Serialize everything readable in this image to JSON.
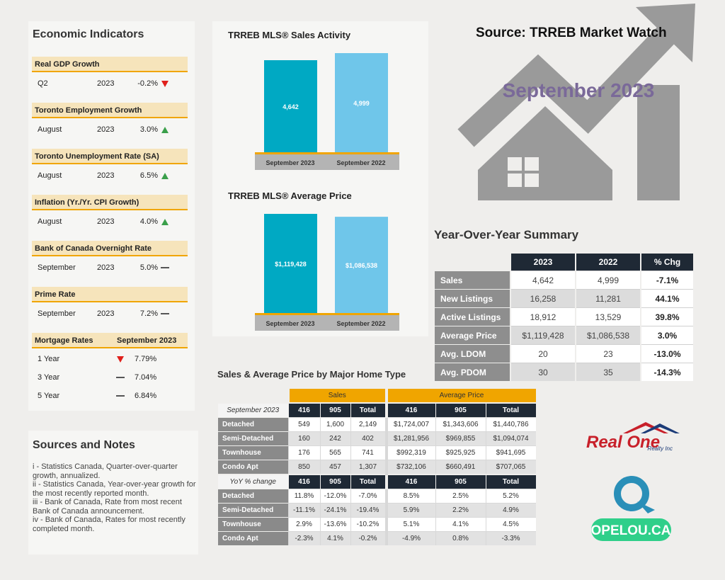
{
  "source": "Source: TRREB Market Watch",
  "period": "September 2023",
  "economic_indicators": {
    "title": "Economic Indicators",
    "items": [
      {
        "name": "Real GDP Growth",
        "period": "Q2",
        "year": "2023",
        "value": "-0.2%",
        "trend": "down"
      },
      {
        "name": "Toronto Employment Growth",
        "period": "August",
        "year": "2023",
        "value": "3.0%",
        "trend": "up"
      },
      {
        "name": "Toronto Unemployment Rate (SA)",
        "period": "August",
        "year": "2023",
        "value": "6.5%",
        "trend": "up"
      },
      {
        "name": "Inflation (Yr./Yr. CPI Growth)",
        "period": "August",
        "year": "2023",
        "value": "4.0%",
        "trend": "up"
      },
      {
        "name": "Bank of Canada Overnight Rate",
        "period": "September",
        "year": "2023",
        "value": "5.0%",
        "trend": "flat"
      },
      {
        "name": "Prime Rate",
        "period": "September",
        "year": "2023",
        "value": "7.2%",
        "trend": "flat"
      }
    ],
    "mortgage": {
      "title": "Mortgage Rates",
      "period": "September 2023",
      "rows": [
        {
          "term": "1 Year",
          "rate": "7.79%",
          "trend": "down"
        },
        {
          "term": "3 Year",
          "rate": "7.04%",
          "trend": "flat"
        },
        {
          "term": "5 Year",
          "rate": "6.84%",
          "trend": "flat"
        }
      ]
    }
  },
  "chart_data": [
    {
      "type": "bar",
      "title": "TRREB MLS® Sales Activity",
      "categories": [
        "September 2023",
        "September 2022"
      ],
      "values": [
        4642,
        4999
      ],
      "value_labels": [
        "4,642",
        "4,999"
      ],
      "colors": [
        "#00a9c3",
        "#6fc6ea"
      ]
    },
    {
      "type": "bar",
      "title": "TRREB MLS® Average Price",
      "categories": [
        "September 2023",
        "September 2022"
      ],
      "values": [
        1119428,
        1086538
      ],
      "value_labels": [
        "$1,119,428",
        "$1,086,538"
      ],
      "colors": [
        "#00a9c3",
        "#6fc6ea"
      ]
    }
  ],
  "yoy_summary": {
    "title": "Year-Over-Year Summary",
    "columns": [
      "2023",
      "2022",
      "% Chg"
    ],
    "rows": [
      {
        "label": "Sales",
        "cells": [
          "4,642",
          "4,999",
          "-7.1%"
        ]
      },
      {
        "label": "New Listings",
        "cells": [
          "16,258",
          "11,281",
          "44.1%"
        ]
      },
      {
        "label": "Active Listings",
        "cells": [
          "18,912",
          "13,529",
          "39.8%"
        ]
      },
      {
        "label": "Average Price",
        "cells": [
          "$1,119,428",
          "$1,086,538",
          "3.0%"
        ]
      },
      {
        "label": "Avg. LDOM",
        "cells": [
          "20",
          "23",
          "-13.0%"
        ]
      },
      {
        "label": "Avg. PDOM",
        "cells": [
          "30",
          "35",
          "-14.3%"
        ]
      }
    ]
  },
  "home_type": {
    "title": "Sales & Average Price by Major Home Type",
    "groups": [
      "Sales",
      "Average Price"
    ],
    "sections": [
      {
        "label": "September 2023",
        "columns": [
          "416",
          "905",
          "Total",
          "416",
          "905",
          "Total"
        ],
        "rows": [
          {
            "label": "Detached",
            "cells": [
              "549",
              "1,600",
              "2,149",
              "$1,724,007",
              "$1,343,606",
              "$1,440,786"
            ]
          },
          {
            "label": "Semi-Detached",
            "cells": [
              "160",
              "242",
              "402",
              "$1,281,956",
              "$969,855",
              "$1,094,074"
            ]
          },
          {
            "label": "Townhouse",
            "cells": [
              "176",
              "565",
              "741",
              "$992,319",
              "$925,925",
              "$941,695"
            ]
          },
          {
            "label": "Condo Apt",
            "cells": [
              "850",
              "457",
              "1,307",
              "$732,106",
              "$660,491",
              "$707,065"
            ]
          }
        ]
      },
      {
        "label": "YoY % change",
        "columns": [
          "416",
          "905",
          "Total",
          "416",
          "905",
          "Total"
        ],
        "rows": [
          {
            "label": "Detached",
            "cells": [
              "11.8%",
              "-12.0%",
              "-7.0%",
              "8.5%",
              "2.5%",
              "5.2%"
            ]
          },
          {
            "label": "Semi-Detached",
            "cells": [
              "-11.1%",
              "-24.1%",
              "-19.4%",
              "5.9%",
              "2.2%",
              "4.9%"
            ]
          },
          {
            "label": "Townhouse",
            "cells": [
              "2.9%",
              "-13.6%",
              "-10.2%",
              "5.1%",
              "4.1%",
              "4.5%"
            ]
          },
          {
            "label": "Condo Apt",
            "cells": [
              "-2.3%",
              "4.1%",
              "-0.2%",
              "-4.9%",
              "0.8%",
              "-3.3%"
            ]
          }
        ]
      }
    ]
  },
  "sources": {
    "title": "Sources and Notes",
    "notes": [
      "i - Statistics Canada, Quarter-over-quarter growth, annualized.",
      "ii - Statistics Canada, Year-over-year growth for the most recently reported month.",
      "iii - Bank of Canada, Rate from most recent Bank of Canada announcement.",
      "iv - Bank of Canada, Rates for most recently completed month."
    ]
  },
  "logos": {
    "brokerage": "Real One",
    "brokerage_sub": "Realty Inc",
    "site": "OPELOU.CA"
  }
}
